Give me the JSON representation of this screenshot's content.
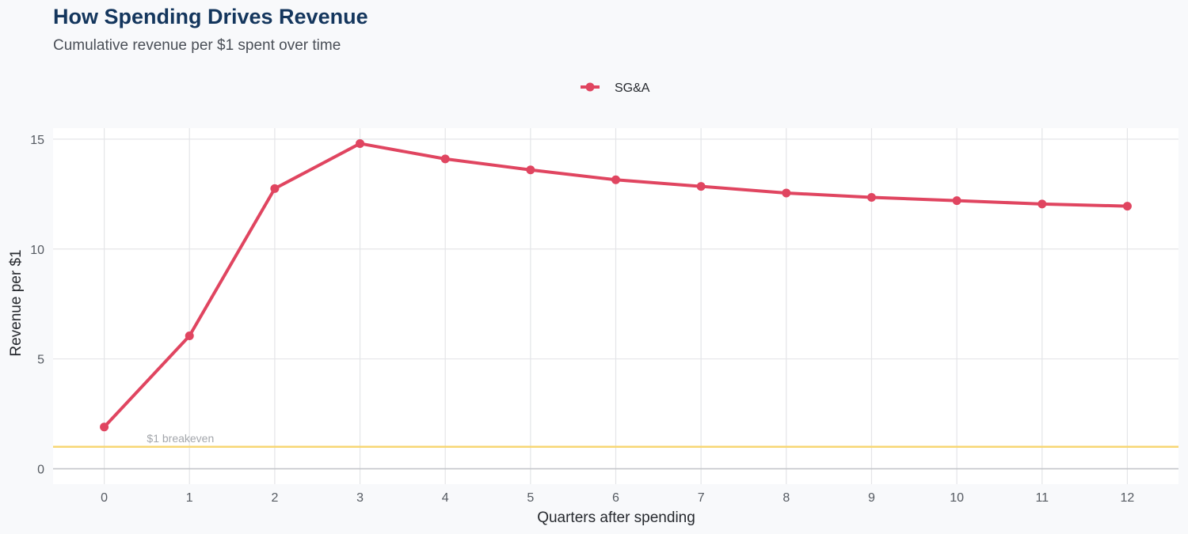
{
  "chart_data": {
    "type": "line",
    "title": "How Spending Drives Revenue",
    "subtitle": "Cumulative revenue per $1 spent over time",
    "xlabel": "Quarters after spending",
    "ylabel": "Revenue per $1",
    "x": [
      0,
      1,
      2,
      3,
      4,
      5,
      6,
      7,
      8,
      9,
      10,
      11,
      12
    ],
    "series": [
      {
        "name": "SG&A",
        "color": "#e04560",
        "values": [
          1.9,
          6.05,
          12.75,
          14.8,
          14.1,
          13.6,
          13.15,
          12.85,
          12.55,
          12.35,
          12.2,
          12.05,
          11.95
        ]
      }
    ],
    "xlim": [
      -0.6,
      12.6
    ],
    "ylim": [
      -0.7,
      15.5
    ],
    "y_ticks": [
      0,
      5,
      10,
      15
    ],
    "reference_line": {
      "y": 1,
      "label": "$1 breakeven",
      "color": "#f7d774"
    },
    "grid": true,
    "legend_position": "top-center"
  }
}
